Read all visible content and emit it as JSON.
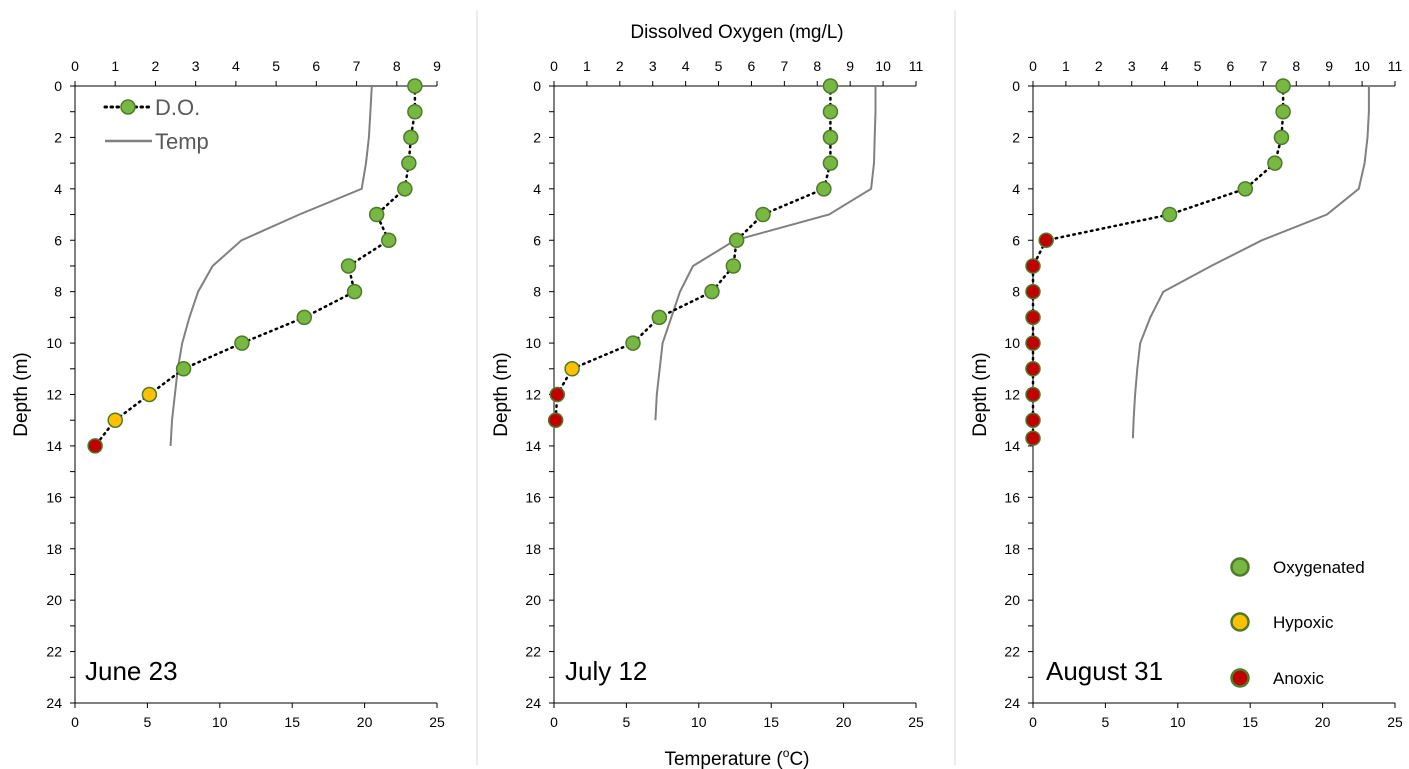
{
  "figure": {
    "top_title": "Dissolved Oxygen (mg/L)",
    "bottom_title_main": "Temperature (",
    "bottom_title_sup": "o",
    "bottom_title_end": "C)",
    "legend_do": "D.O.",
    "legend_temp": "Temp",
    "status_legend": [
      {
        "label": "Oxygenated",
        "color": "#77b843",
        "stroke": "#4f7a2a"
      },
      {
        "label": "Hypoxic",
        "color": "#ffc000",
        "stroke": "#4f7a2a"
      },
      {
        "label": "Anoxic",
        "color": "#c00000",
        "stroke": "#4f7a2a"
      }
    ]
  },
  "colors": {
    "oxygenated": "#77b843",
    "hypoxic": "#ffc000",
    "anoxic": "#c00000",
    "marker_stroke": "#4f7a2a",
    "temp_line": "#808080",
    "axis": "#000000",
    "divider": "#d9d9d9"
  },
  "chart_data": [
    {
      "type": "line",
      "label": "June 23",
      "ylabel": "Depth (m)",
      "ylim": [
        0,
        24
      ],
      "yticks": [
        0,
        2,
        4,
        6,
        8,
        10,
        12,
        14,
        16,
        18,
        20,
        22,
        24
      ],
      "do_axis": {
        "lim": [
          0,
          9
        ],
        "ticks": [
          0,
          1,
          2,
          3,
          4,
          5,
          6,
          7,
          8,
          9
        ]
      },
      "temp_axis": {
        "lim": [
          0,
          25
        ],
        "ticks": [
          0,
          5,
          10,
          15,
          20,
          25
        ]
      },
      "do_series": [
        {
          "depth": 0,
          "do": 8.45,
          "status": "oxygenated"
        },
        {
          "depth": 1,
          "do": 8.45,
          "status": "oxygenated"
        },
        {
          "depth": 2,
          "do": 8.35,
          "status": "oxygenated"
        },
        {
          "depth": 3,
          "do": 8.3,
          "status": "oxygenated"
        },
        {
          "depth": 4,
          "do": 8.2,
          "status": "oxygenated"
        },
        {
          "depth": 5,
          "do": 7.5,
          "status": "oxygenated"
        },
        {
          "depth": 6,
          "do": 7.8,
          "status": "oxygenated"
        },
        {
          "depth": 7,
          "do": 6.8,
          "status": "oxygenated"
        },
        {
          "depth": 8,
          "do": 6.95,
          "status": "oxygenated"
        },
        {
          "depth": 9,
          "do": 5.7,
          "status": "oxygenated"
        },
        {
          "depth": 10,
          "do": 4.15,
          "status": "oxygenated"
        },
        {
          "depth": 11,
          "do": 2.7,
          "status": "oxygenated"
        },
        {
          "depth": 12,
          "do": 1.85,
          "status": "hypoxic"
        },
        {
          "depth": 13,
          "do": 1.0,
          "status": "hypoxic"
        },
        {
          "depth": 14,
          "do": 0.5,
          "status": "anoxic"
        }
      ],
      "temp_series": [
        {
          "depth": 0,
          "temp": 20.5
        },
        {
          "depth": 1,
          "temp": 20.4
        },
        {
          "depth": 2,
          "temp": 20.3
        },
        {
          "depth": 3,
          "temp": 20.1
        },
        {
          "depth": 4,
          "temp": 19.8
        },
        {
          "depth": 5,
          "temp": 15.5
        },
        {
          "depth": 6,
          "temp": 11.5
        },
        {
          "depth": 7,
          "temp": 9.5
        },
        {
          "depth": 8,
          "temp": 8.5
        },
        {
          "depth": 9,
          "temp": 7.9
        },
        {
          "depth": 10,
          "temp": 7.4
        },
        {
          "depth": 11,
          "temp": 7.1
        },
        {
          "depth": 12,
          "temp": 6.9
        },
        {
          "depth": 13,
          "temp": 6.7
        },
        {
          "depth": 14,
          "temp": 6.6
        }
      ]
    },
    {
      "type": "line",
      "label": "July 12",
      "ylabel": "Depth (m)",
      "ylim": [
        0,
        24
      ],
      "yticks": [
        0,
        2,
        4,
        6,
        8,
        10,
        12,
        14,
        16,
        18,
        20,
        22,
        24
      ],
      "do_axis": {
        "lim": [
          0,
          11
        ],
        "ticks": [
          0,
          1,
          2,
          3,
          4,
          5,
          6,
          7,
          8,
          9,
          10,
          11
        ]
      },
      "temp_axis": {
        "lim": [
          0,
          25
        ],
        "ticks": [
          0,
          5,
          10,
          15,
          20,
          25
        ]
      },
      "do_series": [
        {
          "depth": 0,
          "do": 8.4,
          "status": "oxygenated"
        },
        {
          "depth": 1,
          "do": 8.4,
          "status": "oxygenated"
        },
        {
          "depth": 2,
          "do": 8.4,
          "status": "oxygenated"
        },
        {
          "depth": 3,
          "do": 8.4,
          "status": "oxygenated"
        },
        {
          "depth": 4,
          "do": 8.2,
          "status": "oxygenated"
        },
        {
          "depth": 5,
          "do": 6.35,
          "status": "oxygenated"
        },
        {
          "depth": 6,
          "do": 5.55,
          "status": "oxygenated"
        },
        {
          "depth": 7,
          "do": 5.45,
          "status": "oxygenated"
        },
        {
          "depth": 8,
          "do": 4.8,
          "status": "oxygenated"
        },
        {
          "depth": 9,
          "do": 3.2,
          "status": "oxygenated"
        },
        {
          "depth": 10,
          "do": 2.4,
          "status": "oxygenated"
        },
        {
          "depth": 11,
          "do": 0.55,
          "status": "hypoxic"
        },
        {
          "depth": 12,
          "do": 0.1,
          "status": "anoxic"
        },
        {
          "depth": 13,
          "do": 0.05,
          "status": "anoxic"
        }
      ],
      "temp_series": [
        {
          "depth": 0,
          "temp": 22.2
        },
        {
          "depth": 1,
          "temp": 22.2
        },
        {
          "depth": 2,
          "temp": 22.15
        },
        {
          "depth": 3,
          "temp": 22.1
        },
        {
          "depth": 4,
          "temp": 21.9
        },
        {
          "depth": 5,
          "temp": 19.0
        },
        {
          "depth": 6,
          "temp": 12.5
        },
        {
          "depth": 7,
          "temp": 9.6
        },
        {
          "depth": 8,
          "temp": 8.7
        },
        {
          "depth": 9,
          "temp": 8.1
        },
        {
          "depth": 10,
          "temp": 7.5
        },
        {
          "depth": 11,
          "temp": 7.3
        },
        {
          "depth": 12,
          "temp": 7.1
        },
        {
          "depth": 13,
          "temp": 7.0
        }
      ]
    },
    {
      "type": "line",
      "label": "August 31",
      "ylabel": "Depth (m)",
      "ylim": [
        0,
        24
      ],
      "yticks": [
        0,
        2,
        4,
        6,
        8,
        10,
        12,
        14,
        16,
        18,
        20,
        22,
        24
      ],
      "do_axis": {
        "lim": [
          0,
          11
        ],
        "ticks": [
          0,
          1,
          2,
          3,
          4,
          5,
          6,
          7,
          8,
          9,
          10,
          11
        ]
      },
      "temp_axis": {
        "lim": [
          0,
          25
        ],
        "ticks": [
          0,
          5,
          10,
          15,
          20,
          25
        ]
      },
      "do_series": [
        {
          "depth": 0,
          "do": 7.6,
          "status": "oxygenated"
        },
        {
          "depth": 1,
          "do": 7.6,
          "status": "oxygenated"
        },
        {
          "depth": 2,
          "do": 7.55,
          "status": "oxygenated"
        },
        {
          "depth": 3,
          "do": 7.35,
          "status": "oxygenated"
        },
        {
          "depth": 4,
          "do": 6.45,
          "status": "oxygenated"
        },
        {
          "depth": 5,
          "do": 4.15,
          "status": "oxygenated"
        },
        {
          "depth": 6,
          "do": 0.4,
          "status": "anoxic"
        },
        {
          "depth": 7,
          "do": 0.0,
          "status": "anoxic"
        },
        {
          "depth": 8,
          "do": 0.0,
          "status": "anoxic"
        },
        {
          "depth": 9,
          "do": 0.0,
          "status": "anoxic"
        },
        {
          "depth": 10,
          "do": 0.0,
          "status": "anoxic"
        },
        {
          "depth": 11,
          "do": 0.0,
          "status": "anoxic"
        },
        {
          "depth": 12,
          "do": 0.0,
          "status": "anoxic"
        },
        {
          "depth": 13,
          "do": 0.0,
          "status": "anoxic"
        },
        {
          "depth": 13.7,
          "do": 0.0,
          "status": "anoxic"
        }
      ],
      "temp_series": [
        {
          "depth": 0,
          "temp": 23.2
        },
        {
          "depth": 1,
          "temp": 23.2
        },
        {
          "depth": 2,
          "temp": 23.1
        },
        {
          "depth": 3,
          "temp": 22.9
        },
        {
          "depth": 4,
          "temp": 22.5
        },
        {
          "depth": 5,
          "temp": 20.3
        },
        {
          "depth": 6,
          "temp": 15.8
        },
        {
          "depth": 7,
          "temp": 12.3
        },
        {
          "depth": 8,
          "temp": 9.0
        },
        {
          "depth": 9,
          "temp": 8.1
        },
        {
          "depth": 10,
          "temp": 7.4
        },
        {
          "depth": 11,
          "temp": 7.2
        },
        {
          "depth": 12,
          "temp": 7.05
        },
        {
          "depth": 13,
          "temp": 6.95
        },
        {
          "depth": 13.7,
          "temp": 6.9
        }
      ]
    }
  ]
}
